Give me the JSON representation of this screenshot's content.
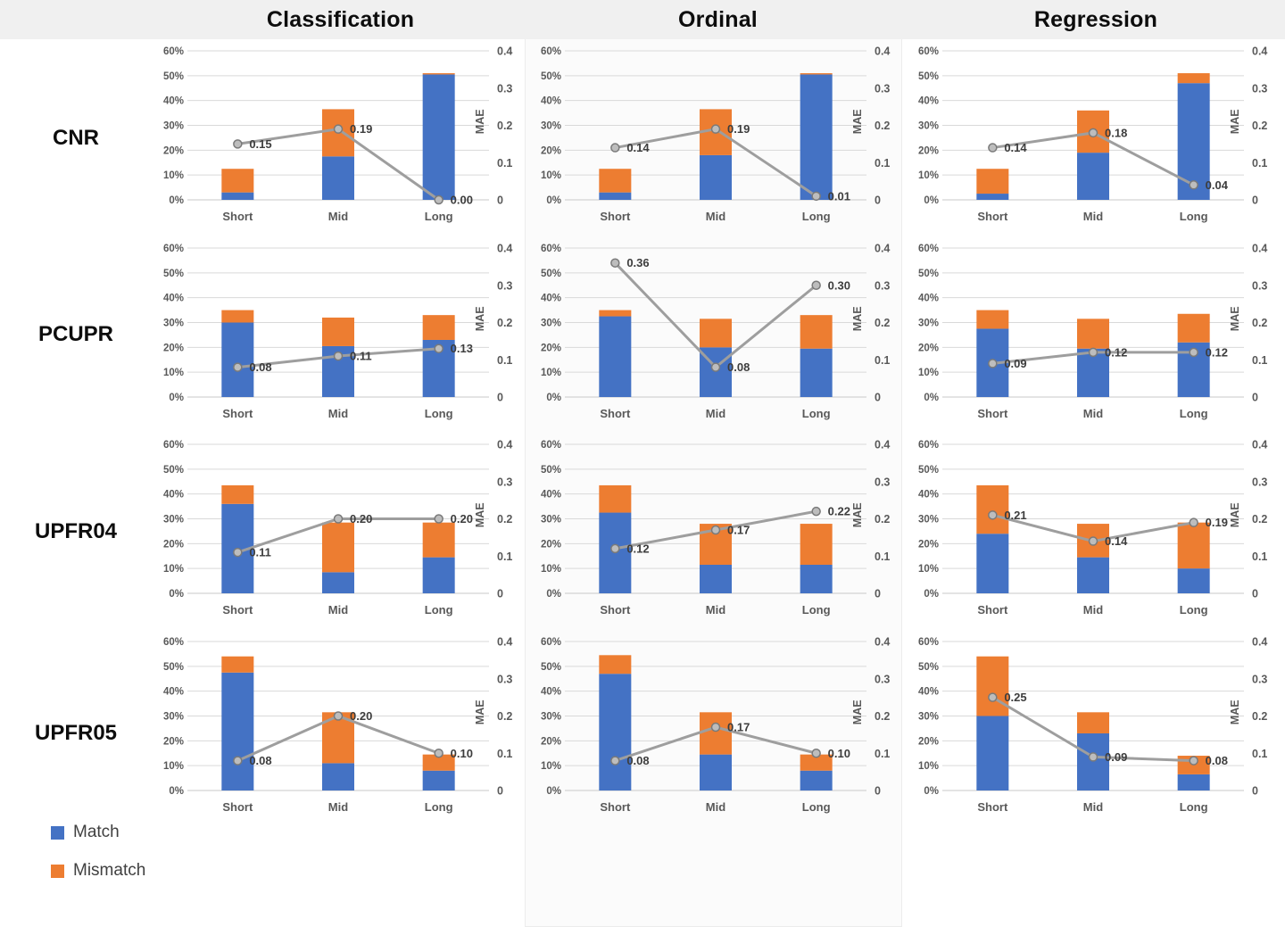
{
  "header": {
    "columns": [
      "Classification",
      "Ordinal",
      "Regression"
    ]
  },
  "rows": [
    "CNR",
    "PCUPR",
    "UPFR04",
    "UPFR05"
  ],
  "legend": [
    {
      "label": "Match",
      "color": "#4472C4"
    },
    {
      "label": "Mismatch",
      "color": "#ED7D31"
    }
  ],
  "style": {
    "match": "#4472C4",
    "mismatch": "#ED7D31",
    "line": "#9E9E9E",
    "marker_fill": "#BDBDBD",
    "marker_stroke": "#7A7A7A",
    "grid": "#D9D9D9",
    "axis": "#C9C9C9",
    "tick": "#595959",
    "value": "#3D3D3D",
    "band": "#F0F0F0",
    "panel": "#FBFBFB"
  },
  "axes": {
    "left": {
      "ticks": [
        "60%",
        "50%",
        "40%",
        "30%",
        "20%",
        "10%",
        "0%"
      ],
      "max": 60
    },
    "right": {
      "label": "MAE",
      "ticks": [
        "0.4",
        "0.3",
        "0.2",
        "0.1",
        "0"
      ],
      "max": 0.4
    }
  },
  "chart_data": [
    {
      "type": "bar",
      "row": "CNR",
      "column": "Classification",
      "categories": [
        "Short",
        "Mid",
        "Long"
      ],
      "series": [
        {
          "name": "Match",
          "values": [
            3,
            17.5,
            50.5
          ]
        },
        {
          "name": "Mismatch",
          "values": [
            9.5,
            19,
            0.5
          ]
        }
      ],
      "line": {
        "name": "MAE",
        "values": [
          0.15,
          0.19,
          0.0
        ],
        "labels": [
          "0.15",
          "0.19",
          "0.00"
        ]
      },
      "ylabel_right": "MAE",
      "ylim_left": [
        0,
        60
      ],
      "ylim_right": [
        0,
        0.4
      ]
    },
    {
      "type": "bar",
      "row": "CNR",
      "column": "Ordinal",
      "categories": [
        "Short",
        "Mid",
        "Long"
      ],
      "series": [
        {
          "name": "Match",
          "values": [
            3,
            18,
            50.5
          ]
        },
        {
          "name": "Mismatch",
          "values": [
            9.5,
            18.5,
            0.5
          ]
        }
      ],
      "line": {
        "name": "MAE",
        "values": [
          0.14,
          0.19,
          0.01
        ],
        "labels": [
          "0.14",
          "0.19",
          "0.01"
        ]
      },
      "ylabel_right": "MAE",
      "ylim_left": [
        0,
        60
      ],
      "ylim_right": [
        0,
        0.4
      ]
    },
    {
      "type": "bar",
      "row": "CNR",
      "column": "Regression",
      "categories": [
        "Short",
        "Mid",
        "Long"
      ],
      "series": [
        {
          "name": "Match",
          "values": [
            2.5,
            19,
            47
          ]
        },
        {
          "name": "Mismatch",
          "values": [
            10,
            17,
            4
          ]
        }
      ],
      "line": {
        "name": "MAE",
        "values": [
          0.14,
          0.18,
          0.04
        ],
        "labels": [
          "0.14",
          "0.18",
          "0.04"
        ]
      },
      "ylabel_right": "MAE",
      "ylim_left": [
        0,
        60
      ],
      "ylim_right": [
        0,
        0.4
      ]
    },
    {
      "type": "bar",
      "row": "PCUPR",
      "column": "Classification",
      "categories": [
        "Short",
        "Mid",
        "Long"
      ],
      "series": [
        {
          "name": "Match",
          "values": [
            30,
            20.5,
            23
          ]
        },
        {
          "name": "Mismatch",
          "values": [
            5,
            11.5,
            10
          ]
        }
      ],
      "line": {
        "name": "MAE",
        "values": [
          0.08,
          0.11,
          0.13
        ],
        "labels": [
          "0.08",
          "0.11",
          "0.13"
        ]
      },
      "ylabel_right": "MAE",
      "ylim_left": [
        0,
        60
      ],
      "ylim_right": [
        0,
        0.4
      ]
    },
    {
      "type": "bar",
      "row": "PCUPR",
      "column": "Ordinal",
      "categories": [
        "Short",
        "Mid",
        "Long"
      ],
      "series": [
        {
          "name": "Match",
          "values": [
            32.5,
            20,
            19.5
          ]
        },
        {
          "name": "Mismatch",
          "values": [
            2.5,
            11.5,
            13.5
          ]
        }
      ],
      "line": {
        "name": "MAE",
        "values": [
          0.36,
          0.08,
          0.3
        ],
        "labels": [
          "0.36",
          "0.08",
          "0.30"
        ]
      },
      "ylabel_right": "MAE",
      "ylim_left": [
        0,
        60
      ],
      "ylim_right": [
        0,
        0.4
      ]
    },
    {
      "type": "bar",
      "row": "PCUPR",
      "column": "Regression",
      "categories": [
        "Short",
        "Mid",
        "Long"
      ],
      "series": [
        {
          "name": "Match",
          "values": [
            27.5,
            19.5,
            22
          ]
        },
        {
          "name": "Mismatch",
          "values": [
            7.5,
            12,
            11.5
          ]
        }
      ],
      "line": {
        "name": "MAE",
        "values": [
          0.09,
          0.12,
          0.12
        ],
        "labels": [
          "0.09",
          "0.12",
          "0.12"
        ]
      },
      "ylabel_right": "MAE",
      "ylim_left": [
        0,
        60
      ],
      "ylim_right": [
        0,
        0.4
      ]
    },
    {
      "type": "bar",
      "row": "UPFR04",
      "column": "Classification",
      "categories": [
        "Short",
        "Mid",
        "Long"
      ],
      "series": [
        {
          "name": "Match",
          "values": [
            36,
            8.5,
            14.5
          ]
        },
        {
          "name": "Mismatch",
          "values": [
            7.5,
            20,
            14
          ]
        }
      ],
      "line": {
        "name": "MAE",
        "values": [
          0.11,
          0.2,
          0.2
        ],
        "labels": [
          "0.11",
          "0.20",
          "0.20"
        ]
      },
      "ylabel_right": "MAE",
      "ylim_left": [
        0,
        60
      ],
      "ylim_right": [
        0,
        0.4
      ]
    },
    {
      "type": "bar",
      "row": "UPFR04",
      "column": "Ordinal",
      "categories": [
        "Short",
        "Mid",
        "Long"
      ],
      "series": [
        {
          "name": "Match",
          "values": [
            32.5,
            11.5,
            11.5
          ]
        },
        {
          "name": "Mismatch",
          "values": [
            11,
            16.5,
            16.5
          ]
        }
      ],
      "line": {
        "name": "MAE",
        "values": [
          0.12,
          0.17,
          0.22
        ],
        "labels": [
          "0.12",
          "0.17",
          "0.22"
        ]
      },
      "ylabel_right": "MAE",
      "ylim_left": [
        0,
        60
      ],
      "ylim_right": [
        0,
        0.4
      ]
    },
    {
      "type": "bar",
      "row": "UPFR04",
      "column": "Regression",
      "categories": [
        "Short",
        "Mid",
        "Long"
      ],
      "series": [
        {
          "name": "Match",
          "values": [
            24,
            14.5,
            10
          ]
        },
        {
          "name": "Mismatch",
          "values": [
            19.5,
            13.5,
            18.5
          ]
        }
      ],
      "line": {
        "name": "MAE",
        "values": [
          0.21,
          0.14,
          0.19
        ],
        "labels": [
          "0.21",
          "0.14",
          "0.19"
        ]
      },
      "ylabel_right": "MAE",
      "ylim_left": [
        0,
        60
      ],
      "ylim_right": [
        0,
        0.4
      ]
    },
    {
      "type": "bar",
      "row": "UPFR05",
      "column": "Classification",
      "categories": [
        "Short",
        "Mid",
        "Long"
      ],
      "series": [
        {
          "name": "Match",
          "values": [
            47.5,
            11,
            8
          ]
        },
        {
          "name": "Mismatch",
          "values": [
            6.5,
            20.5,
            6.5
          ]
        }
      ],
      "line": {
        "name": "MAE",
        "values": [
          0.08,
          0.2,
          0.1
        ],
        "labels": [
          "0.08",
          "0.20",
          "0.10"
        ]
      },
      "ylabel_right": "MAE",
      "ylim_left": [
        0,
        60
      ],
      "ylim_right": [
        0,
        0.4
      ]
    },
    {
      "type": "bar",
      "row": "UPFR05",
      "column": "Ordinal",
      "categories": [
        "Short",
        "Mid",
        "Long"
      ],
      "series": [
        {
          "name": "Match",
          "values": [
            47,
            14.5,
            8
          ]
        },
        {
          "name": "Mismatch",
          "values": [
            7.5,
            17,
            6.5
          ]
        }
      ],
      "line": {
        "name": "MAE",
        "values": [
          0.08,
          0.17,
          0.1
        ],
        "labels": [
          "0.08",
          "0.17",
          "0.10"
        ]
      },
      "ylabel_right": "MAE",
      "ylim_left": [
        0,
        60
      ],
      "ylim_right": [
        0,
        0.4
      ]
    },
    {
      "type": "bar",
      "row": "UPFR05",
      "column": "Regression",
      "categories": [
        "Short",
        "Mid",
        "Long"
      ],
      "series": [
        {
          "name": "Match",
          "values": [
            30,
            23,
            6.5
          ]
        },
        {
          "name": "Mismatch",
          "values": [
            24,
            8.5,
            7.5
          ]
        }
      ],
      "line": {
        "name": "MAE",
        "values": [
          0.25,
          0.09,
          0.08
        ],
        "labels": [
          "0.25",
          "0.09",
          "0.08"
        ]
      },
      "ylabel_right": "MAE",
      "ylim_left": [
        0,
        60
      ],
      "ylim_right": [
        0,
        0.4
      ]
    }
  ]
}
